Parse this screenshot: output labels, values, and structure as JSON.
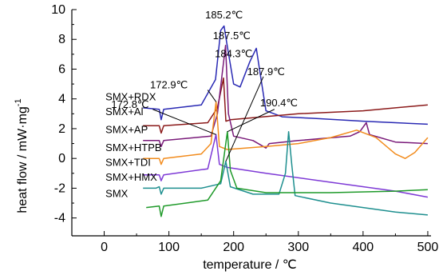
{
  "chart_data": {
    "type": "line",
    "xlabel": "temperature / ℃",
    "ylabel": "heat flow / mW·mg",
    "ylabel_sup": "-1",
    "xlim": [
      -50,
      505
    ],
    "ylim": [
      -5.2,
      10
    ],
    "xticks": [
      0,
      100,
      200,
      300,
      400,
      500
    ],
    "yticks": [
      -4,
      -2,
      0,
      2,
      4,
      6,
      8,
      10
    ],
    "series": [
      {
        "name": "SMX+RDX",
        "color": "#2a2ab4",
        "points": [
          [
            60,
            3.4
          ],
          [
            85,
            3.3
          ],
          [
            88,
            2.6
          ],
          [
            92,
            3.3
          ],
          [
            150,
            3.6
          ],
          [
            172,
            5.3
          ],
          [
            180,
            8.6
          ],
          [
            185.2,
            8.9
          ],
          [
            190,
            7.6
          ],
          [
            200,
            5.0
          ],
          [
            210,
            4.8
          ],
          [
            225,
            6.5
          ],
          [
            235,
            7.4
          ],
          [
            240,
            6.0
          ],
          [
            250,
            3.2
          ],
          [
            275,
            2.8
          ],
          [
            320,
            2.7
          ],
          [
            400,
            2.5
          ],
          [
            450,
            2.4
          ],
          [
            500,
            2.3
          ]
        ]
      },
      {
        "name": "SMX+Al",
        "color": "#8b1a1a",
        "points": [
          [
            60,
            2.2
          ],
          [
            85,
            2.2
          ],
          [
            88,
            1.7
          ],
          [
            92,
            2.2
          ],
          [
            160,
            2.4
          ],
          [
            175,
            3.4
          ],
          [
            184.3,
            5.4
          ],
          [
            188,
            2.5
          ],
          [
            195,
            2.6
          ],
          [
            300,
            3.0
          ],
          [
            400,
            3.2
          ],
          [
            500,
            3.6
          ]
        ]
      },
      {
        "name": "SMX+AP",
        "color": "#7a1b7a",
        "points": [
          [
            60,
            1.2
          ],
          [
            85,
            1.2
          ],
          [
            88,
            0.8
          ],
          [
            92,
            1.2
          ],
          [
            165,
            1.5
          ],
          [
            175,
            3.0
          ],
          [
            187.5,
            7.6
          ],
          [
            192,
            3.0
          ],
          [
            200,
            1.5
          ],
          [
            230,
            1.2
          ],
          [
            250,
            0.7
          ],
          [
            255,
            1.0
          ],
          [
            300,
            1.2
          ],
          [
            380,
            1.5
          ],
          [
            395,
            1.8
          ],
          [
            405,
            2.4
          ],
          [
            410,
            1.6
          ],
          [
            450,
            1.1
          ],
          [
            500,
            1.0
          ]
        ]
      },
      {
        "name": "SMX+HTPB",
        "color": "#f28c1e",
        "points": [
          [
            60,
            0.0
          ],
          [
            85,
            0.0
          ],
          [
            88,
            -0.4
          ],
          [
            92,
            0.0
          ],
          [
            150,
            0.3
          ],
          [
            165,
            1.0
          ],
          [
            172.9,
            3.8
          ],
          [
            178,
            0.8
          ],
          [
            190,
            0.6
          ],
          [
            250,
            0.8
          ],
          [
            300,
            1.0
          ],
          [
            350,
            1.4
          ],
          [
            390,
            1.9
          ],
          [
            420,
            1.4
          ],
          [
            450,
            0.3
          ],
          [
            465,
            0.0
          ],
          [
            480,
            0.4
          ],
          [
            500,
            1.4
          ]
        ]
      },
      {
        "name": "SMX+TDI",
        "color": "#7e3ad6",
        "points": [
          [
            60,
            -1.1
          ],
          [
            85,
            -1.1
          ],
          [
            88,
            -1.5
          ],
          [
            92,
            -1.1
          ],
          [
            160,
            -0.7
          ],
          [
            172.8,
            1.6
          ],
          [
            178,
            -0.4
          ],
          [
            190,
            -0.6
          ],
          [
            250,
            -1.0
          ],
          [
            350,
            -1.6
          ],
          [
            450,
            -2.2
          ],
          [
            500,
            -2.6
          ]
        ]
      },
      {
        "name": "SMX+HMX",
        "color": "#1e8f8f",
        "points": [
          [
            60,
            -2.0
          ],
          [
            80,
            -2.0
          ],
          [
            85,
            -1.9
          ],
          [
            88,
            -2.4
          ],
          [
            92,
            -2.0
          ],
          [
            150,
            -2.0
          ],
          [
            180,
            -1.7
          ],
          [
            187.9,
            -0.2
          ],
          [
            195,
            -1.9
          ],
          [
            230,
            -2.4
          ],
          [
            270,
            -2.4
          ],
          [
            280,
            -1.0
          ],
          [
            285,
            1.8
          ],
          [
            290,
            -0.5
          ],
          [
            295,
            -2.5
          ],
          [
            350,
            -3.0
          ],
          [
            450,
            -3.6
          ],
          [
            500,
            -3.8
          ]
        ]
      },
      {
        "name": "SMX",
        "color": "#1f9a2a",
        "points": [
          [
            65,
            -3.3
          ],
          [
            85,
            -3.2
          ],
          [
            88,
            -3.9
          ],
          [
            92,
            -3.2
          ],
          [
            160,
            -2.8
          ],
          [
            180,
            -1.5
          ],
          [
            190.4,
            1.8
          ],
          [
            195,
            -0.8
          ],
          [
            205,
            -2.0
          ],
          [
            250,
            -2.3
          ],
          [
            350,
            -2.3
          ],
          [
            450,
            -2.2
          ],
          [
            500,
            -2.1
          ]
        ]
      }
    ],
    "series_label_positions": [
      {
        "name": "SMX+RDX",
        "x": 2,
        "y": 3.9
      },
      {
        "name": "SMX+Al",
        "x": 2,
        "y": 2.9
      },
      {
        "name": "SMX+AP",
        "x": 2,
        "y": 1.7
      },
      {
        "name": "SMX+HTPB",
        "x": 2,
        "y": 0.5
      },
      {
        "name": "SMX+TDI",
        "x": 2,
        "y": -0.5
      },
      {
        "name": "SMX+HMX",
        "x": 2,
        "y": -1.5
      },
      {
        "name": "SMX",
        "x": 2,
        "y": -2.6
      }
    ],
    "annotations": [
      {
        "text": "185.2℃",
        "x": 185.2,
        "y": 9.4,
        "tx": 185.2,
        "ty": 9.4,
        "leader": false
      },
      {
        "text": "187.5℃",
        "x": 187.5,
        "y": 7.8,
        "tx": 197,
        "ty": 8.0,
        "leader": false
      },
      {
        "text": "184.3℃",
        "x": 184.3,
        "y": 5.4,
        "tx": 200,
        "ty": 6.8,
        "leader": false
      },
      {
        "text": "187.9℃",
        "x": 187.9,
        "y": -0.2,
        "tx": 250,
        "ty": 5.6,
        "leader": true,
        "lx": 246,
        "ly": 5.5
      },
      {
        "text": "172.9℃",
        "x": 172.9,
        "y": 3.8,
        "tx": 100,
        "ty": 4.7,
        "leader": true,
        "lx": 160,
        "ly": 4.6
      },
      {
        "text": "172.8℃",
        "x": 172.8,
        "y": 1.6,
        "tx": 40,
        "ty": 3.4,
        "leader": true,
        "lx": 75,
        "ly": 3.3
      },
      {
        "text": "190.4℃",
        "x": 190.4,
        "y": 1.8,
        "tx": 270,
        "ty": 3.5,
        "leader": true,
        "lx": 263,
        "ly": 3.3
      }
    ]
  }
}
